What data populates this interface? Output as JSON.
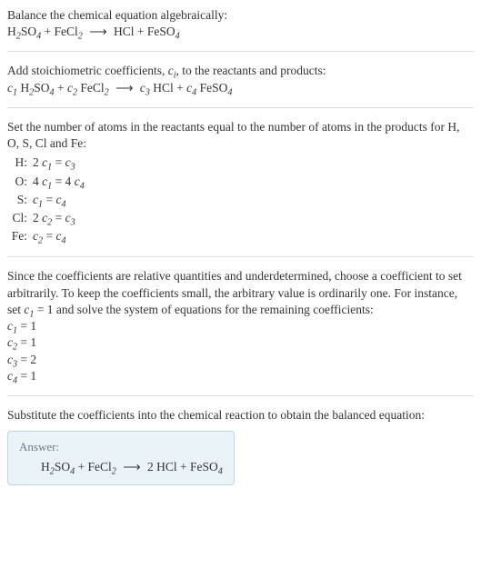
{
  "intro": {
    "line1": "Balance the chemical equation algebraically:",
    "eq_lhs1": "H",
    "eq_lhs1_sub": "2",
    "eq_lhs1b": "SO",
    "eq_lhs1b_sub": "4",
    "plus": " + ",
    "eq_lhs2": "FeCl",
    "eq_lhs2_sub": "2",
    "arrow": "⟶",
    "eq_rhs1": "HCl",
    "eq_rhs2": "FeSO",
    "eq_rhs2_sub": "4"
  },
  "step2": {
    "line1a": "Add stoichiometric coefficients, ",
    "ci_c": "c",
    "ci_i": "i",
    "line1b": ", to the reactants and products:",
    "c1": "c",
    "s1": "1",
    "sp1": " H",
    "s1a": "2",
    "sp1b": "SO",
    "s1c": "4",
    "plus": " + ",
    "c2": "c",
    "s2": "2",
    "sp2": " FeCl",
    "s2a": "2",
    "arrow": "⟶",
    "c3": "c",
    "s3": "3",
    "sp3": " HCl",
    "c4": "c",
    "s4": "4",
    "sp4": " FeSO",
    "s4a": "4"
  },
  "step3": {
    "text": "Set the number of atoms in the reactants equal to the number of atoms in the products for H, O, S, Cl and Fe:",
    "rows": [
      {
        "el": "H:",
        "eq_a": "2 ",
        "eq_c1": "c",
        "eq_s1": "1",
        "eq_mid": " = ",
        "eq_c2": "c",
        "eq_s2": "3"
      },
      {
        "el": "O:",
        "eq_a": "4 ",
        "eq_c1": "c",
        "eq_s1": "1",
        "eq_mid": " = 4 ",
        "eq_c2": "c",
        "eq_s2": "4"
      },
      {
        "el": "S:",
        "eq_a": "",
        "eq_c1": "c",
        "eq_s1": "1",
        "eq_mid": " = ",
        "eq_c2": "c",
        "eq_s2": "4"
      },
      {
        "el": "Cl:",
        "eq_a": "2 ",
        "eq_c1": "c",
        "eq_s1": "2",
        "eq_mid": " = ",
        "eq_c2": "c",
        "eq_s2": "3"
      },
      {
        "el": "Fe:",
        "eq_a": "",
        "eq_c1": "c",
        "eq_s1": "2",
        "eq_mid": " = ",
        "eq_c2": "c",
        "eq_s2": "4"
      }
    ]
  },
  "step4": {
    "pre": "Since the coefficients are relative quantities and underdetermined, choose a coefficient to set arbitrarily. To keep the coefficients small, the arbitrary value is ordinarily one. For instance, set ",
    "c": "c",
    "s": "1",
    "post": " = 1 and solve the system of equations for the remaining coefficients:",
    "lines": [
      {
        "c": "c",
        "s": "1",
        "rest": " = 1"
      },
      {
        "c": "c",
        "s": "2",
        "rest": " = 1"
      },
      {
        "c": "c",
        "s": "3",
        "rest": " = 2"
      },
      {
        "c": "c",
        "s": "4",
        "rest": " = 1"
      }
    ]
  },
  "step5": {
    "text": "Substitute the coefficients into the chemical reaction to obtain the balanced equation:"
  },
  "answer": {
    "label": "Answer:",
    "lhs1": "H",
    "lhs1_sub": "2",
    "lhs1b": "SO",
    "lhs1b_sub": "4",
    "plus": " + ",
    "lhs2": "FeCl",
    "lhs2_sub": "2",
    "arrow": "⟶",
    "rhs_coef": " 2 ",
    "rhs1": "HCl",
    "rhs2": "FeSO",
    "rhs2_sub": "4"
  },
  "colors": {
    "text": "#333333",
    "separator": "#dddddd",
    "answer_bg": "#eaf4f8",
    "answer_border": "#bcd9e8",
    "answer_label": "#6a7a8a"
  }
}
